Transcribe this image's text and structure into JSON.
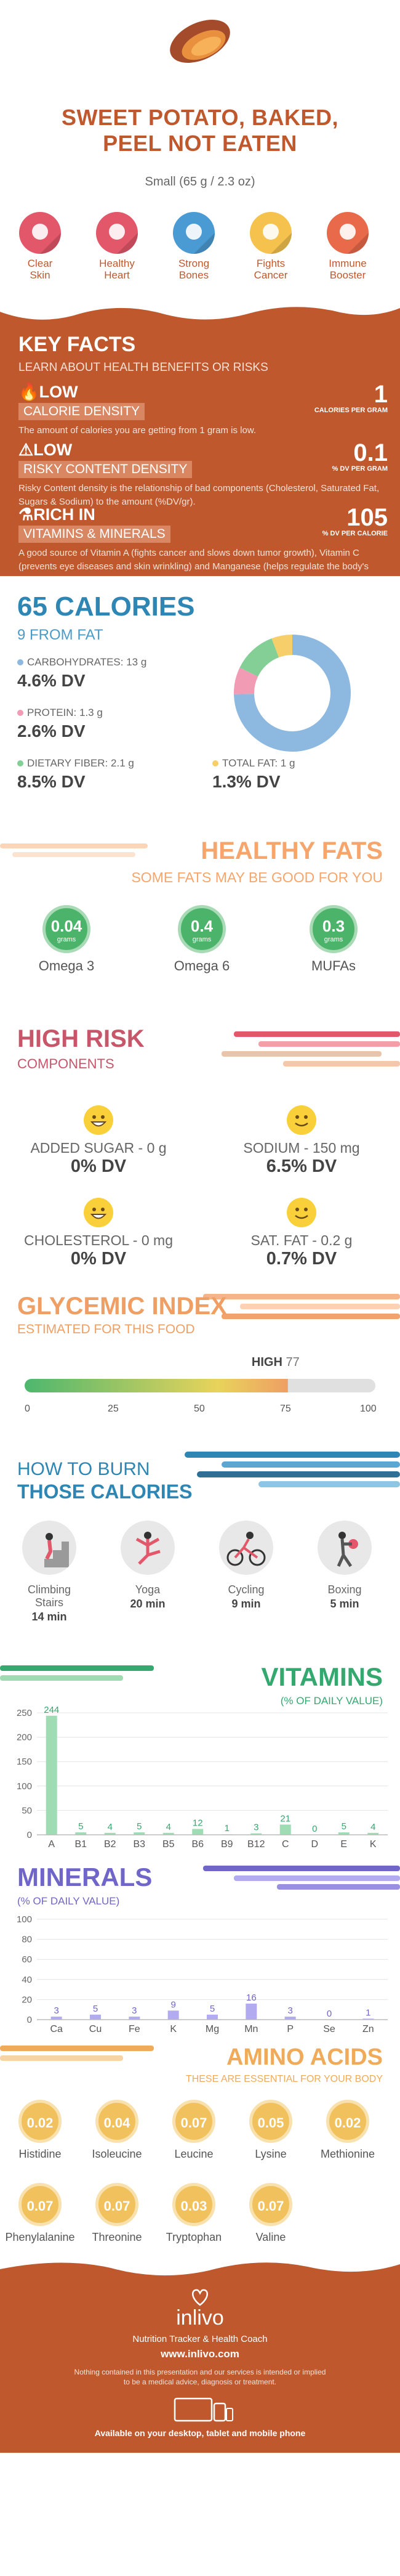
{
  "header": {
    "title_line1": "SWEET POTATO, BAKED,",
    "title_line2": "PEEL NOT EATEN",
    "serving": "Small (65 g / 2.3 oz)",
    "benefits": [
      {
        "label1": "Clear",
        "label2": "Skin",
        "icon": "skin-icon",
        "color": "#e2586a"
      },
      {
        "label1": "Healthy",
        "label2": "Heart",
        "icon": "heart-icon",
        "color": "#e2586a"
      },
      {
        "label1": "Strong",
        "label2": "Bones",
        "icon": "bone-icon",
        "color": "#4a9ad3"
      },
      {
        "label1": "Fights",
        "label2": "Cancer",
        "icon": "ribbon-icon",
        "color": "#f4c24d"
      },
      {
        "label1": "Immune",
        "label2": "Booster",
        "icon": "immune-icon",
        "color": "#e86a4a"
      }
    ]
  },
  "key_facts": {
    "heading": "KEY FACTS",
    "subheading": "LEARN ABOUT HEALTH BENEFITS OR RISKS",
    "items": [
      {
        "level": "LOW",
        "tag": "CALORIE DENSITY",
        "value": "1",
        "unit": "CALORIES PER GRAM",
        "desc": "The amount of calories you are getting from 1 gram is low."
      },
      {
        "level": "LOW",
        "tag": "RISKY CONTENT DENSITY",
        "value": "0.1",
        "unit": "% DV PER GRAM",
        "desc": "Risky Content density is the relationship of bad components (Cholesterol, Saturated Fat, Sugars & Sodium) to the amount (%DV/gr)."
      },
      {
        "level": "RICH  IN",
        "tag": "VITAMINS & MINERALS",
        "value": "105",
        "unit": "% DV PER CALORIE",
        "desc": "A good source of Vitamin A (fights cancer and slows down tumor growth), Vitamin C (prevents eye diseases and skin wrinkling) and Manganese (helps regulate the body's metabolism)."
      }
    ]
  },
  "calories": {
    "heading": "65 CALORIES",
    "sub": "9 FROM FAT",
    "nutrients": [
      {
        "label": "CARBOHYDRATES: 13 g",
        "dv": "4.6% DV",
        "color": "#8db8e0"
      },
      {
        "label": "PROTEIN: 1.3 g",
        "dv": "2.6% DV",
        "color": "#f29bb5"
      },
      {
        "label": "DIETARY FIBER: 2.1 g",
        "dv": "8.5% DV",
        "color": "#83cf95"
      },
      {
        "label": "TOTAL FAT: 1 g",
        "dv": "1.3% DV",
        "color": "#f7cf6a"
      }
    ]
  },
  "healthy_fats": {
    "heading": "HEALTHY FATS",
    "sub": "SOME FATS MAY BE GOOD FOR YOU",
    "unit": "grams",
    "items": [
      {
        "value": "0.04",
        "label": "Omega 3"
      },
      {
        "value": "0.4",
        "label": "Omega 6"
      },
      {
        "value": "0.3",
        "label": "MUFAs"
      }
    ]
  },
  "high_risk": {
    "heading": "HIGH RISK",
    "sub": "COMPONENTS",
    "items": [
      {
        "label": "ADDED SUGAR - 0 g",
        "dv": "0% DV",
        "face": "grin"
      },
      {
        "label": "SODIUM - 150 mg",
        "dv": "6.5% DV",
        "face": "smile"
      },
      {
        "label": "CHOLESTEROL - 0 mg",
        "dv": "0% DV",
        "face": "grin"
      },
      {
        "label": "SAT. FAT - 0.2 g",
        "dv": "0.7% DV",
        "face": "smile"
      }
    ]
  },
  "glycemic": {
    "heading": "GLYCEMIC INDEX",
    "sub": "ESTIMATED FOR THIS FOOD",
    "level": "HIGH",
    "value": 77,
    "value_text": "77",
    "ticks": [
      "0",
      "25",
      "50",
      "75",
      "100"
    ]
  },
  "burn": {
    "heading1": "HOW TO BURN",
    "heading2": "THOSE CALORIES",
    "items": [
      {
        "label": "Climbing Stairs",
        "time": "14 min",
        "icon": "stairs-icon"
      },
      {
        "label": "Yoga",
        "time": "20 min",
        "icon": "yoga-icon"
      },
      {
        "label": "Cycling",
        "time": "9 min",
        "icon": "cycling-icon"
      },
      {
        "label": "Boxing",
        "time": "5 min",
        "icon": "boxing-icon"
      }
    ]
  },
  "vitamins": {
    "heading": "VITAMINS",
    "sub": "(% OF DAILY VALUE)",
    "color": "#34a86e",
    "bar_color": "#9fdcb3"
  },
  "minerals": {
    "heading": "MINERALS",
    "sub": "(% OF DAILY VALUE)",
    "color": "#7065c9",
    "bar_color": "#b3abf0"
  },
  "amino": {
    "heading": "AMINO ACIDS",
    "sub": "THESE ARE ESSENTIAL FOR YOUR BODY",
    "unit": "g",
    "items": [
      {
        "value": "0.02",
        "label": "Histidine"
      },
      {
        "value": "0.04",
        "label": "Isoleucine"
      },
      {
        "value": "0.07",
        "label": "Leucine"
      },
      {
        "value": "0.05",
        "label": "Lysine"
      },
      {
        "value": "0.02",
        "label": "Methionine"
      },
      {
        "value": "0.07",
        "label": "Phenylalanine"
      },
      {
        "value": "0.07",
        "label": "Threonine"
      },
      {
        "value": "0.03",
        "label": "Tryptophan"
      },
      {
        "value": "0.07",
        "label": "Valine"
      }
    ]
  },
  "footer": {
    "brand": "inlivo",
    "tagline": "Nutrition Tracker & Health Coach",
    "url": "www.inlivo.com",
    "disclaimer1": "Nothing contained in this presentation and our services is intended or implied",
    "disclaimer2": "to be a medical advice, diagnosis or treatment.",
    "available": "Available on your desktop, tablet and mobile phone"
  },
  "chart_data": [
    {
      "type": "pie",
      "categories": [
        "CARBOHYDRATES",
        "PROTEIN",
        "DIETARY FIBER",
        "TOTAL FAT"
      ],
      "values": [
        13,
        1.3,
        2.1,
        1
      ],
      "colors": [
        "#8db8e0",
        "#f29bb5",
        "#83cf95",
        "#f7cf6a"
      ]
    },
    {
      "type": "bar",
      "title": "VITAMINS",
      "categories": [
        "A",
        "B1",
        "B2",
        "B3",
        "B5",
        "B6",
        "B9",
        "B12",
        "C",
        "D",
        "E",
        "K"
      ],
      "values": [
        244,
        5,
        4,
        5,
        4,
        12,
        1,
        3,
        21,
        0,
        5,
        4
      ],
      "ylim": [
        0,
        250
      ],
      "yticks": [
        0,
        50,
        100,
        150,
        200,
        250
      ]
    },
    {
      "type": "bar",
      "title": "MINERALS",
      "categories": [
        "Ca",
        "Cu",
        "Fe",
        "K",
        "Mg",
        "Mn",
        "P",
        "Se",
        "Zn"
      ],
      "values": [
        3,
        5,
        3,
        9,
        5,
        16,
        3,
        0,
        1
      ],
      "ylim": [
        0,
        100
      ],
      "yticks": [
        0,
        20,
        40,
        60,
        80,
        100
      ]
    }
  ]
}
